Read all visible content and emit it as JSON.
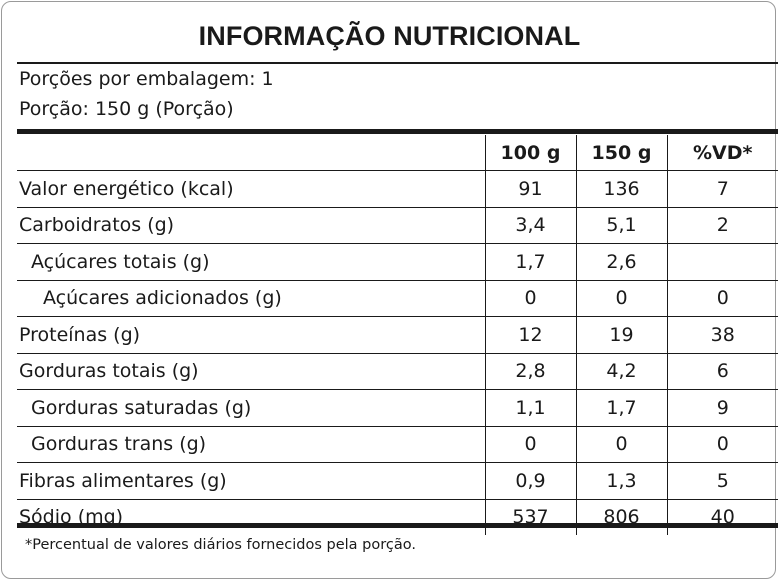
{
  "title": "INFORMAÇÃO NUTRICIONAL",
  "portions_per_package": "Porções por embalagem: 1",
  "portion": "Porção: 150 g (Porção)",
  "columns": [
    "",
    "100 g",
    "150 g",
    "%VD*"
  ],
  "rows": [
    {
      "name": "Valor energético (kcal)",
      "v100": "91",
      "v150": "136",
      "vd": "7",
      "indent": 0
    },
    {
      "name": "Carboidratos (g)",
      "v100": "3,4",
      "v150": "5,1",
      "vd": "2",
      "indent": 0
    },
    {
      "name": "Açúcares totais (g)",
      "v100": "1,7",
      "v150": "2,6",
      "vd": "",
      "indent": 1
    },
    {
      "name": "Açúcares adicionados (g)",
      "v100": "0",
      "v150": "0",
      "vd": "0",
      "indent": 2
    },
    {
      "name": "Proteínas (g)",
      "v100": "12",
      "v150": "19",
      "vd": "38",
      "indent": 0
    },
    {
      "name": "Gorduras totais (g)",
      "v100": "2,8",
      "v150": "4,2",
      "vd": "6",
      "indent": 0
    },
    {
      "name": "Gorduras saturadas (g)",
      "v100": "1,1",
      "v150": "1,7",
      "vd": "9",
      "indent": 1
    },
    {
      "name": "Gorduras trans (g)",
      "v100": "0",
      "v150": "0",
      "vd": "0",
      "indent": 1
    },
    {
      "name": "Fibras alimentares (g)",
      "v100": "0,9",
      "v150": "1,3",
      "vd": "5",
      "indent": 0
    },
    {
      "name": "Sódio (mg)",
      "v100": "537",
      "v150": "806",
      "vd": "40",
      "indent": 0
    }
  ],
  "footnote": "*Percentual de valores diários fornecidos pela porção."
}
